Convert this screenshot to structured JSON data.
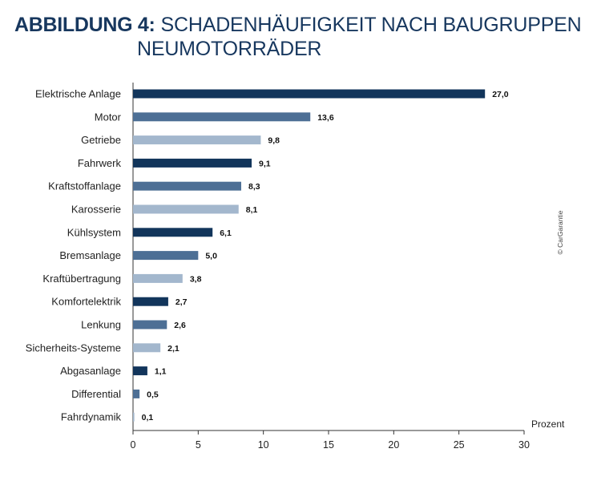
{
  "title": {
    "prefix": "ABBILDUNG 4:",
    "line1": "SCHADENHÄUFIGKEIT NACH BAUGRUPPEN",
    "line2": "NEUMOTORRÄDER"
  },
  "credit": "© CarGarantie",
  "colors": {
    "dark": "#12355b",
    "mid": "#4d6f95",
    "light": "#a3b7cd",
    "axis": "#333333"
  },
  "chart_data": {
    "type": "bar",
    "orientation": "horizontal",
    "title": "SCHADENHÄUFIGKEIT NACH BAUGRUPPEN NEUMOTORRÄDER",
    "xlabel": "Prozent",
    "ylabel": "",
    "xlim": [
      0,
      30
    ],
    "xticks": [
      0,
      5,
      10,
      15,
      20,
      25,
      30
    ],
    "grid": false,
    "categories": [
      "Elektrische Anlage",
      "Motor",
      "Getriebe",
      "Fahrwerk",
      "Kraftstoffanlage",
      "Karosserie",
      "Kühlsystem",
      "Bremsanlage",
      "Kraftübertragung",
      "Komfortelektrik",
      "Lenkung",
      "Sicherheits-Systeme",
      "Abgasanlage",
      "Differential",
      "Fahrdynamik"
    ],
    "values": [
      27.0,
      13.6,
      9.8,
      9.1,
      8.3,
      8.1,
      6.1,
      5.0,
      3.8,
      2.7,
      2.6,
      2.1,
      1.1,
      0.5,
      0.1
    ],
    "value_labels": [
      "27,0",
      "13,6",
      "9,8",
      "9,1",
      "8,3",
      "8,1",
      "6,1",
      "5,0",
      "3,8",
      "2,7",
      "2,6",
      "2,1",
      "1,1",
      "0,5",
      "0,1"
    ],
    "tick_labels": [
      "0",
      "5",
      "10",
      "15",
      "20",
      "25",
      "30"
    ],
    "bar_color_cycle": [
      "dark",
      "mid",
      "light"
    ]
  }
}
